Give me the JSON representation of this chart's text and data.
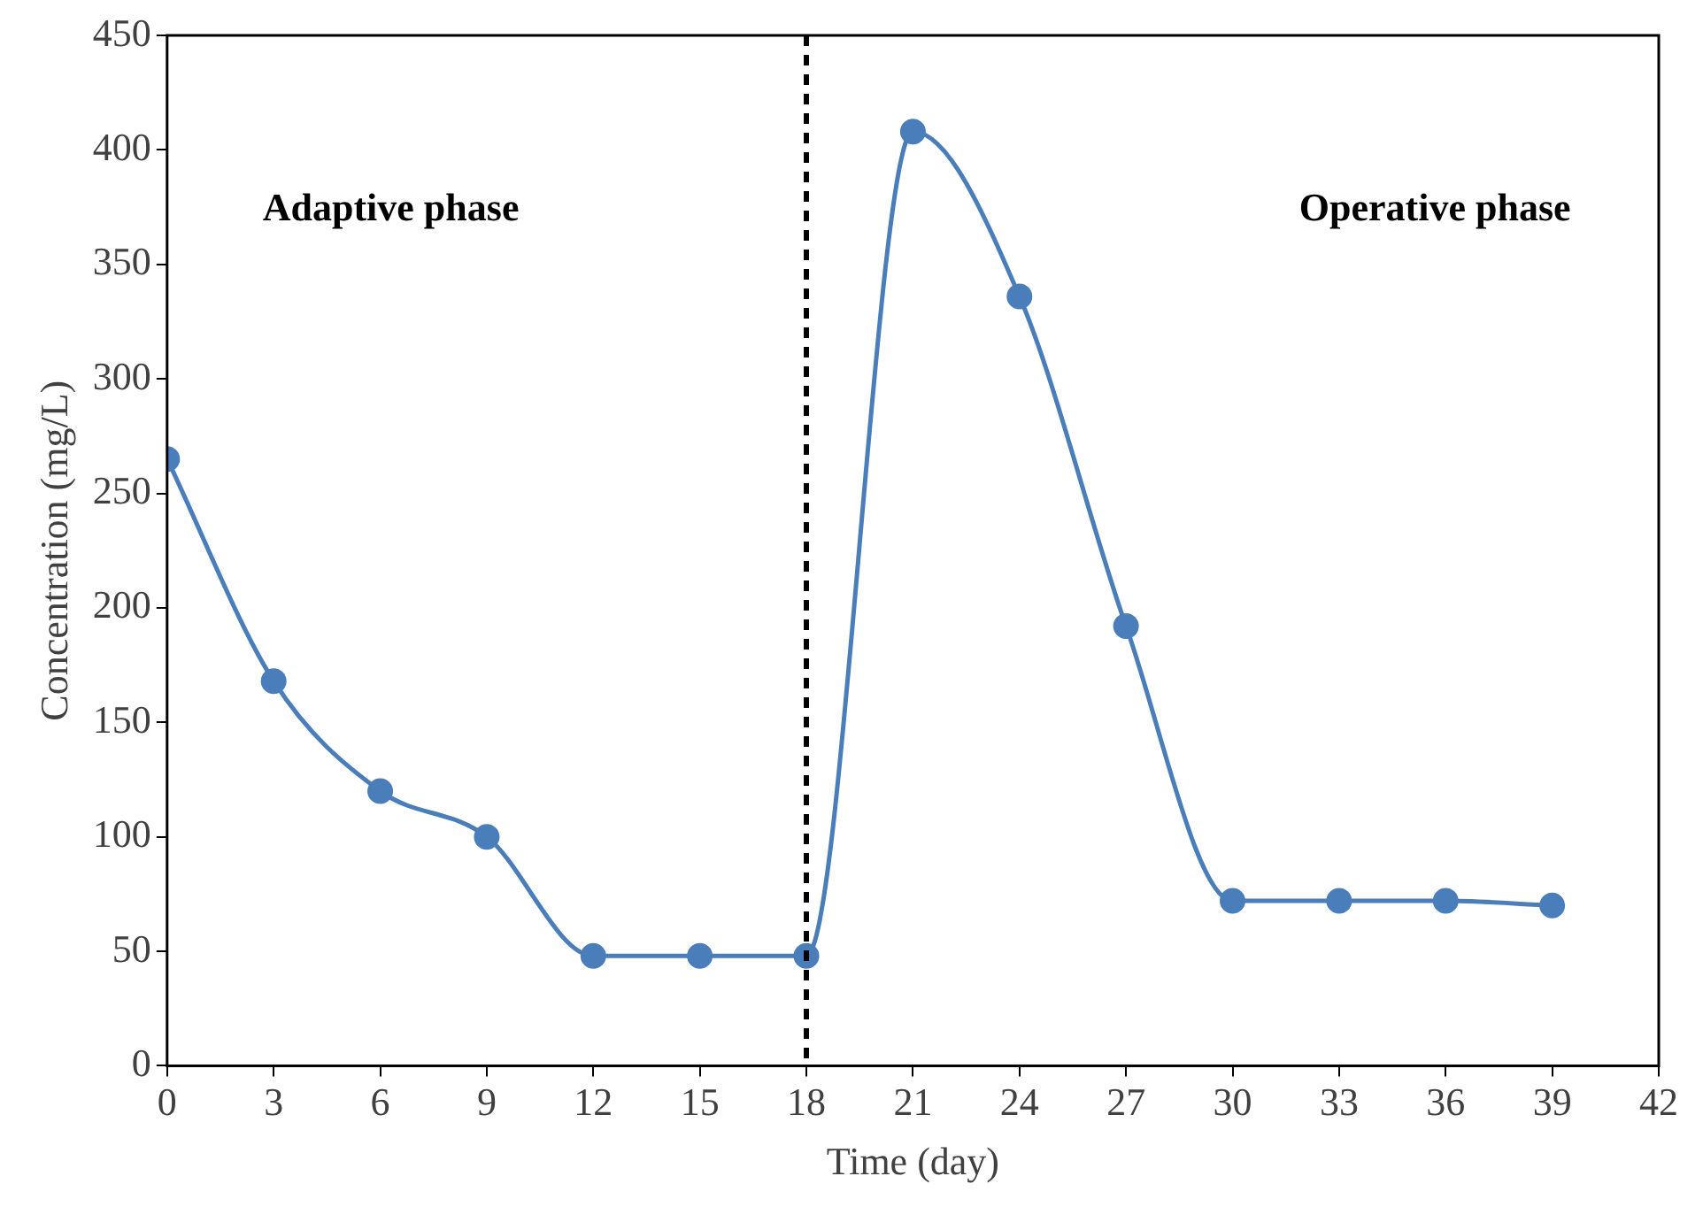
{
  "chart_data": {
    "type": "line",
    "xlabel": "Time (day)",
    "ylabel": "Concentration (mg/L)",
    "x": [
      0,
      3,
      6,
      9,
      12,
      15,
      18,
      21,
      24,
      27,
      30,
      33,
      36,
      39
    ],
    "series": [
      {
        "color": "#4a7ebb",
        "values": [
          265,
          168,
          120,
          100,
          48,
          48,
          48,
          408,
          336,
          192,
          72,
          72,
          72,
          70
        ]
      }
    ],
    "xlim": [
      0,
      42
    ],
    "xticks": [
      0,
      3,
      6,
      9,
      12,
      15,
      18,
      21,
      24,
      27,
      30,
      33,
      36,
      39,
      42
    ],
    "ylim": [
      0,
      450
    ],
    "yticks": [
      0,
      50,
      100,
      150,
      200,
      250,
      300,
      350,
      400,
      450
    ],
    "ref_lines": [
      {
        "axis": "x",
        "value": 18,
        "color": "#000000",
        "line_style": "dashed"
      }
    ],
    "annotations": [
      "Adaptive phase",
      "Operative phase"
    ],
    "grid": false,
    "legend": false,
    "marker": "circle",
    "line_style": "solid"
  }
}
